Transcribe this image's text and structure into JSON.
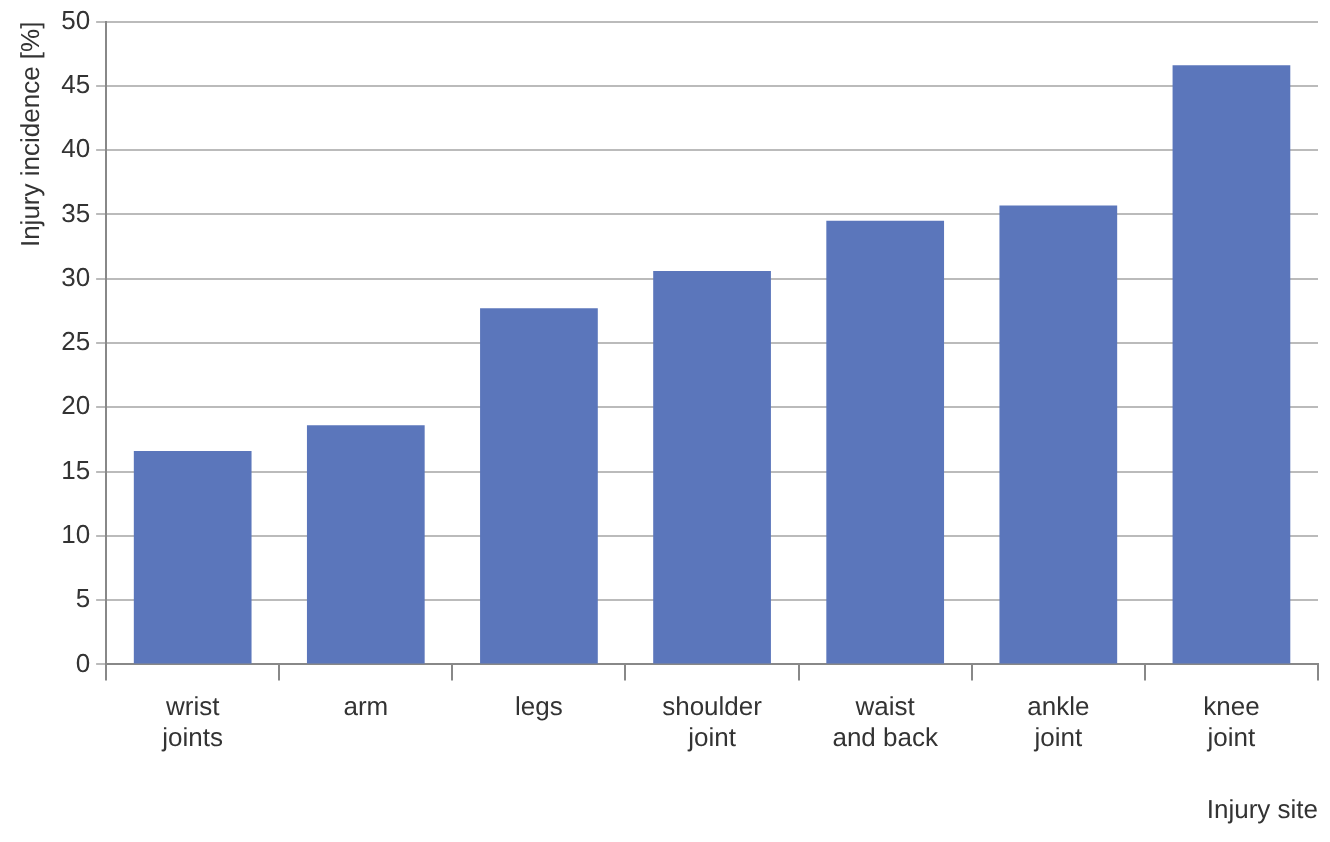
{
  "chart_data": {
    "type": "bar",
    "xlabel": "Injury site",
    "ylabel": "Injury incidence [%]",
    "categories": [
      "wrist joints",
      "arm",
      "legs",
      "shoulder joint",
      "waist and back",
      "ankle joint",
      "knee joint"
    ],
    "values": [
      16.6,
      18.6,
      27.7,
      30.6,
      34.5,
      35.7,
      46.6
    ],
    "color": "#5b76bb",
    "ylim": [
      0,
      50
    ],
    "yticks": [
      0,
      5,
      10,
      15,
      20,
      25,
      30,
      35,
      40,
      45,
      50
    ],
    "grid": "y",
    "legend": false
  }
}
